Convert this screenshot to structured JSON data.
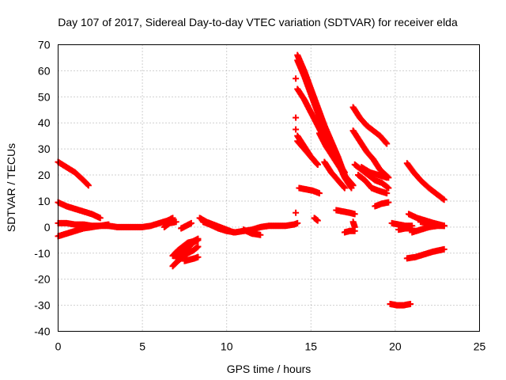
{
  "chart_data": {
    "type": "scatter",
    "title": "Day 107 of 2017, Sidereal Day-to-day VTEC variation (SDTVAR) for receiver elda",
    "xlabel": "GPS time / hours",
    "ylabel": "SDTVAR / TECUs",
    "xlim": [
      0,
      25
    ],
    "ylim": [
      -40,
      70
    ],
    "xticks": [
      0,
      5,
      10,
      15,
      20,
      25
    ],
    "yticks": [
      -40,
      -30,
      -20,
      -10,
      0,
      10,
      20,
      30,
      40,
      50,
      60,
      70
    ],
    "grid": true,
    "marker": "+",
    "color": "#ff0000",
    "tracks": [
      {
        "x": [
          0.0,
          0.5,
          1.0,
          1.5,
          1.8
        ],
        "y": [
          25,
          23,
          21,
          18,
          16
        ]
      },
      {
        "x": [
          0.0,
          0.5,
          1.0,
          1.5,
          2.0,
          2.5
        ],
        "y": [
          9.5,
          8,
          7,
          6,
          5,
          3.5
        ]
      },
      {
        "x": [
          0.0,
          0.5,
          1.0,
          1.5,
          2.0,
          2.5,
          3.0
        ],
        "y": [
          1.5,
          1.5,
          1,
          1,
          0.5,
          0.5,
          0.5
        ]
      },
      {
        "x": [
          0.0,
          0.5,
          1.0,
          1.5,
          2.0,
          2.5,
          3.0
        ],
        "y": [
          -3.5,
          -2.5,
          -1.5,
          -0.5,
          0,
          0.5,
          1
        ]
      },
      {
        "x": [
          3.0,
          3.5,
          4.0,
          4.5,
          5.0,
          5.5,
          6.0,
          6.5,
          6.8
        ],
        "y": [
          0.5,
          0,
          0,
          0,
          0,
          0.5,
          1.5,
          2.5,
          3.5
        ]
      },
      {
        "x": [
          6.3,
          6.6,
          7.0
        ],
        "y": [
          0,
          1.5,
          2
        ]
      },
      {
        "x": [
          7.3,
          7.6,
          7.9
        ],
        "y": [
          -0.5,
          0.5,
          1.5
        ]
      },
      {
        "x": [
          6.8,
          7.1,
          7.4,
          7.7,
          8.0,
          8.3
        ],
        "y": [
          -15,
          -13,
          -11.5,
          -10,
          -9,
          -7.5
        ]
      },
      {
        "x": [
          6.8,
          7.1,
          7.4,
          7.7,
          8.0,
          8.3
        ],
        "y": [
          -11,
          -9,
          -7.5,
          -6,
          -5.5,
          -4.5
        ]
      },
      {
        "x": [
          7.0,
          7.3,
          7.7,
          8.0,
          8.3
        ],
        "y": [
          -12,
          -10,
          -8,
          -6,
          -5
        ]
      },
      {
        "x": [
          7.5,
          7.8,
          8.1,
          8.3
        ],
        "y": [
          -13,
          -12.5,
          -12,
          -11.5
        ]
      },
      {
        "x": [
          8.4,
          8.8,
          9.2,
          9.6,
          10.0,
          10.4
        ],
        "y": [
          3.5,
          2,
          1,
          0,
          -1,
          -2
        ]
      },
      {
        "x": [
          8.6,
          9.0,
          9.5,
          10.0,
          10.5
        ],
        "y": [
          2,
          1,
          -0.5,
          -1.5,
          -2
        ]
      },
      {
        "x": [
          10.5,
          11.0,
          11.5,
          12.0,
          12.5,
          13.0,
          13.5,
          14.0,
          14.2
        ],
        "y": [
          -2,
          -1.5,
          -1,
          0,
          0.5,
          0.5,
          0.5,
          1,
          1.5
        ]
      },
      {
        "x": [
          11.0,
          11.5,
          12.0
        ],
        "y": [
          -1,
          -2.5,
          -3
        ]
      },
      {
        "x": [
          14.1
        ],
        "y": [
          57
        ]
      },
      {
        "x": [
          14.1
        ],
        "y": [
          42
        ]
      },
      {
        "x": [
          14.1
        ],
        "y": [
          37.5
        ]
      },
      {
        "x": [
          14.1
        ],
        "y": [
          5.5
        ]
      },
      {
        "x": [
          14.2,
          14.6,
          15.0,
          15.4,
          15.8,
          16.2,
          16.6,
          17.0
        ],
        "y": [
          66,
          60,
          53,
          46,
          39,
          33,
          27,
          20
        ]
      },
      {
        "x": [
          14.2,
          14.6,
          15.0,
          15.4,
          15.8,
          16.2,
          16.6,
          17.0,
          17.4
        ],
        "y": [
          64,
          58,
          51,
          44,
          37,
          31,
          25,
          19,
          15
        ]
      },
      {
        "x": [
          14.2,
          14.6,
          15.0,
          15.4,
          15.8,
          16.2,
          16.6,
          17.0
        ],
        "y": [
          53,
          49,
          44,
          39,
          34,
          29,
          25,
          21
        ]
      },
      {
        "x": [
          14.2,
          14.6,
          15.0,
          15.4
        ],
        "y": [
          35,
          31,
          27,
          24
        ]
      },
      {
        "x": [
          14.2,
          14.6,
          15.0,
          15.4
        ],
        "y": [
          33,
          30,
          27,
          24
        ]
      },
      {
        "x": [
          14.3,
          14.7,
          15.1,
          15.5
        ],
        "y": [
          15,
          14.5,
          14,
          13
        ]
      },
      {
        "x": [
          15.2,
          15.4
        ],
        "y": [
          3.5,
          2.5
        ]
      },
      {
        "x": [
          15.5,
          15.9,
          16.3,
          16.7,
          17.1,
          17.5
        ],
        "y": [
          36,
          31,
          27,
          23,
          19,
          16
        ]
      },
      {
        "x": [
          15.8,
          16.2,
          16.6,
          17.0
        ],
        "y": [
          25,
          21,
          18,
          15
        ]
      },
      {
        "x": [
          16.5,
          16.9,
          17.3,
          17.6
        ],
        "y": [
          6.5,
          6,
          5.5,
          5
        ]
      },
      {
        "x": [
          17.0,
          17.3,
          17.6
        ],
        "y": [
          -2,
          -1.5,
          -1.5
        ]
      },
      {
        "x": [
          17.5,
          17.6
        ],
        "y": [
          2,
          0
        ]
      },
      {
        "x": [
          17.5,
          17.9,
          18.3,
          18.7,
          19.1,
          19.5
        ],
        "y": [
          46,
          42,
          39,
          37,
          35,
          32
        ]
      },
      {
        "x": [
          17.5,
          17.9,
          18.3,
          18.7,
          19.1,
          19.6
        ],
        "y": [
          37,
          33,
          29,
          26,
          22,
          19
        ]
      },
      {
        "x": [
          17.6,
          18.0,
          18.4,
          18.8,
          19.2,
          19.6
        ],
        "y": [
          24,
          22,
          20,
          18,
          17,
          15
        ]
      },
      {
        "x": [
          17.8,
          18.2,
          18.6,
          19.0,
          19.5
        ],
        "y": [
          20,
          18,
          15,
          14,
          13
        ]
      },
      {
        "x": [
          18.0,
          18.5,
          19.0,
          19.5
        ],
        "y": [
          23,
          21,
          20,
          19
        ]
      },
      {
        "x": [
          18.8,
          19.2,
          19.6
        ],
        "y": [
          8,
          9,
          9.5
        ]
      },
      {
        "x": [
          19.7,
          20.1,
          20.5,
          20.9
        ],
        "y": [
          -29.5,
          -30,
          -30,
          -29.5
        ]
      },
      {
        "x": [
          19.8,
          20.2,
          20.6,
          21.0
        ],
        "y": [
          1.5,
          1,
          0.5,
          0.5
        ]
      },
      {
        "x": [
          20.2,
          20.6,
          21.0
        ],
        "y": [
          -1,
          -0.5,
          -0.5
        ]
      },
      {
        "x": [
          20.7,
          21.1,
          21.5,
          22.0,
          22.5,
          22.9
        ],
        "y": [
          24.5,
          21,
          18,
          15,
          12.5,
          10.5
        ]
      },
      {
        "x": [
          20.7,
          21.2,
          21.7,
          22.2,
          22.9
        ],
        "y": [
          -12,
          -11.5,
          -10.5,
          -9.5,
          -8.5
        ]
      },
      {
        "x": [
          20.8,
          21.3,
          21.8,
          22.3,
          22.9
        ],
        "y": [
          5,
          3.5,
          2.5,
          1.5,
          0.5
        ]
      },
      {
        "x": [
          21.0,
          21.5,
          22.0,
          22.5,
          22.9
        ],
        "y": [
          -2,
          -1,
          0,
          0.5,
          0.5
        ]
      },
      {
        "x": [
          21.5,
          22.0,
          22.5,
          22.9
        ],
        "y": [
          2,
          1.5,
          1,
          0.5
        ]
      }
    ]
  }
}
